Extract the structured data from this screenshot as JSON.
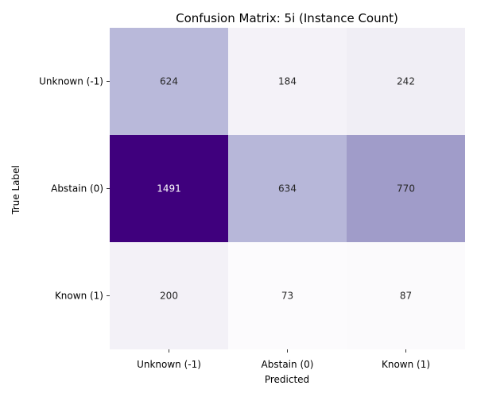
{
  "chart_data": {
    "type": "heatmap",
    "title": "Confusion Matrix: 5i (Instance Count)",
    "xlabel": "Predicted",
    "ylabel": "True Label",
    "x_categories": [
      "Unknown (-1)",
      "Abstain (0)",
      "Known (1)"
    ],
    "y_categories": [
      "Unknown (-1)",
      "Abstain (0)",
      "Known (1)"
    ],
    "values": [
      [
        624,
        184,
        242
      ],
      [
        1491,
        634,
        770
      ],
      [
        200,
        73,
        87
      ]
    ],
    "colormap": "Purples",
    "colorbar": false,
    "grid": false
  }
}
